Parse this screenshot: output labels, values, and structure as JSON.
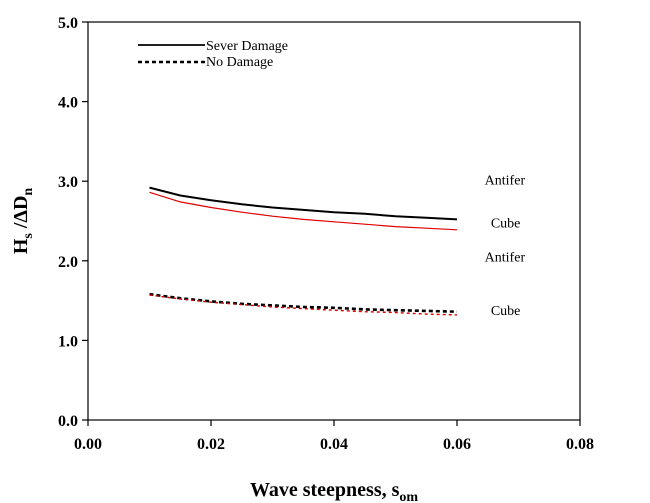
{
  "chart_data": {
    "type": "line",
    "title": "",
    "xlabel": {
      "main": "Wave steepness, s",
      "sub": "om"
    },
    "ylabel": {
      "h": "H",
      "h_sub": "s",
      "mid": " /ΔD",
      "d_sub": "n"
    },
    "xlim": [
      0,
      0.08
    ],
    "ylim": [
      0,
      5.0
    ],
    "x_ticks": [
      0.0,
      0.02,
      0.04,
      0.06,
      0.08
    ],
    "x_tick_labels": [
      "0.00",
      "0.02",
      "0.04",
      "0.06",
      "0.08"
    ],
    "y_ticks": [
      0.0,
      1.0,
      2.0,
      3.0,
      4.0,
      5.0
    ],
    "y_tick_labels": [
      "0.0",
      "1.0",
      "2.0",
      "3.0",
      "4.0",
      "5.0"
    ],
    "grid": false,
    "legend_position": "top-left",
    "legend": [
      {
        "label": "Sever Damage",
        "style": "solid"
      },
      {
        "label": "No Damage",
        "style": "dashed"
      }
    ],
    "series": [
      {
        "name": "Antifer",
        "condition": "Sever Damage",
        "color": "#000000",
        "style": "solid",
        "x": [
          0.01,
          0.015,
          0.02,
          0.025,
          0.03,
          0.035,
          0.04,
          0.045,
          0.05,
          0.055,
          0.06
        ],
        "y": [
          2.92,
          2.82,
          2.76,
          2.71,
          2.67,
          2.64,
          2.61,
          2.59,
          2.56,
          2.54,
          2.52
        ]
      },
      {
        "name": "Cube",
        "condition": "Sever Damage",
        "color": "#e00000",
        "style": "solid",
        "x": [
          0.01,
          0.015,
          0.02,
          0.025,
          0.03,
          0.035,
          0.04,
          0.045,
          0.05,
          0.055,
          0.06
        ],
        "y": [
          2.86,
          2.74,
          2.67,
          2.61,
          2.56,
          2.52,
          2.49,
          2.46,
          2.43,
          2.41,
          2.39
        ]
      },
      {
        "name": "Antifer",
        "condition": "No Damage",
        "color": "#000000",
        "style": "dashed",
        "x": [
          0.01,
          0.015,
          0.02,
          0.025,
          0.03,
          0.035,
          0.04,
          0.045,
          0.05,
          0.055,
          0.06
        ],
        "y": [
          1.58,
          1.53,
          1.49,
          1.46,
          1.44,
          1.42,
          1.41,
          1.39,
          1.38,
          1.37,
          1.36
        ]
      },
      {
        "name": "Cube",
        "condition": "No Damage",
        "color": "#e00000",
        "style": "dashed",
        "x": [
          0.01,
          0.015,
          0.02,
          0.025,
          0.03,
          0.035,
          0.04,
          0.045,
          0.05,
          0.055,
          0.06
        ],
        "y": [
          1.57,
          1.52,
          1.48,
          1.45,
          1.42,
          1.4,
          1.38,
          1.36,
          1.35,
          1.33,
          1.32
        ]
      }
    ],
    "annotations": [
      {
        "text": "Antifer",
        "x": 0.0645,
        "y": 2.96
      },
      {
        "text": "Cube",
        "x": 0.0655,
        "y": 2.42
      },
      {
        "text": "Antifer",
        "x": 0.0645,
        "y": 1.99
      },
      {
        "text": "Cube",
        "x": 0.0655,
        "y": 1.32
      }
    ]
  }
}
